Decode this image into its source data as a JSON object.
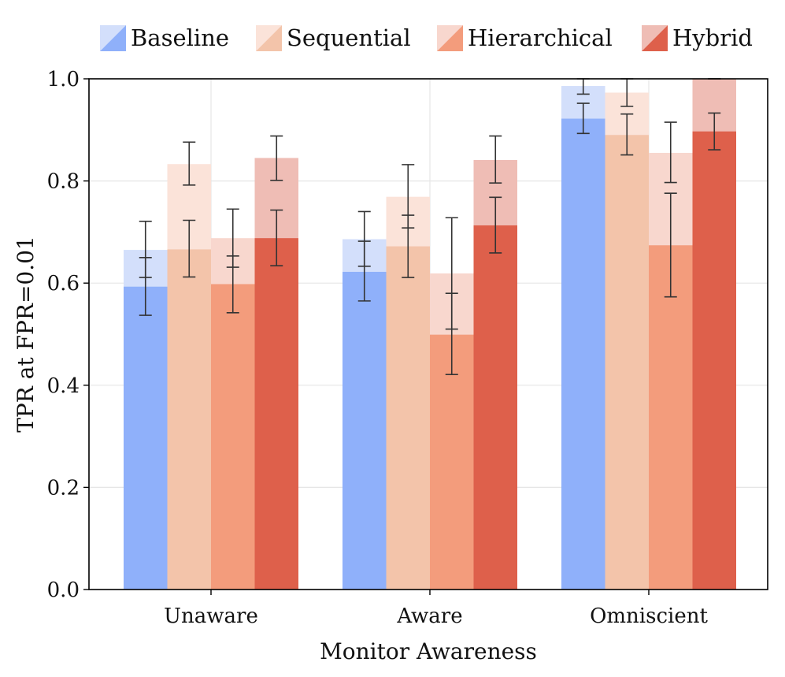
{
  "chart_data": {
    "type": "bar",
    "title": "",
    "xlabel": "Monitor Awareness",
    "ylabel": "TPR at FPR=0.01",
    "ylim": [
      0.0,
      1.0
    ],
    "yticks": [
      0.0,
      0.2,
      0.4,
      0.6,
      0.8,
      1.0
    ],
    "ytick_labels": [
      "0.0",
      "0.2",
      "0.4",
      "0.6",
      "0.8",
      "1.0"
    ],
    "categories": [
      "Unaware",
      "Aware",
      "Omniscient"
    ],
    "legend_position": "top",
    "grid": true,
    "series": [
      {
        "name": "Baseline",
        "color": "#8fb0fa",
        "light_color": "#d3dffb",
        "values": [
          0.593,
          0.622,
          0.922
        ],
        "errors": [
          [
            0.537,
            0.65
          ],
          [
            0.565,
            0.682
          ],
          [
            0.893,
            0.952
          ]
        ],
        "overlay_values": [
          0.665,
          0.686,
          0.986
        ],
        "overlay_errors": [
          [
            0.611,
            0.721
          ],
          [
            0.633,
            0.74
          ],
          [
            0.97,
            1.0
          ]
        ]
      },
      {
        "name": "Sequential",
        "color": "#f3c4aa",
        "light_color": "#fbe3d9",
        "values": [
          0.666,
          0.672,
          0.89
        ],
        "errors": [
          [
            0.612,
            0.723
          ],
          [
            0.611,
            0.733
          ],
          [
            0.851,
            0.931
          ]
        ],
        "overlay_values": [
          0.833,
          0.769,
          0.973
        ],
        "overlay_errors": [
          [
            0.792,
            0.876
          ],
          [
            0.708,
            0.832
          ],
          [
            0.946,
            1.0
          ]
        ]
      },
      {
        "name": "Hierarchical",
        "color": "#f39c7c",
        "light_color": "#f8d7ce",
        "values": [
          0.598,
          0.499,
          0.674
        ],
        "errors": [
          [
            0.542,
            0.653
          ],
          [
            0.421,
            0.58
          ],
          [
            0.573,
            0.776
          ]
        ],
        "overlay_values": [
          0.688,
          0.619,
          0.855
        ],
        "overlay_errors": [
          [
            0.631,
            0.745
          ],
          [
            0.51,
            0.728
          ],
          [
            0.797,
            0.915
          ]
        ]
      },
      {
        "name": "Hybrid",
        "color": "#de604b",
        "light_color": "#efbdb5",
        "values": [
          0.688,
          0.713,
          0.897
        ],
        "errors": [
          [
            0.634,
            0.743
          ],
          [
            0.659,
            0.768
          ],
          [
            0.861,
            0.933
          ]
        ],
        "overlay_values": [
          0.845,
          0.841,
          1.0
        ],
        "overlay_errors": [
          [
            0.801,
            0.888
          ],
          [
            0.796,
            0.888
          ],
          [
            1.0,
            1.0
          ]
        ]
      }
    ]
  }
}
